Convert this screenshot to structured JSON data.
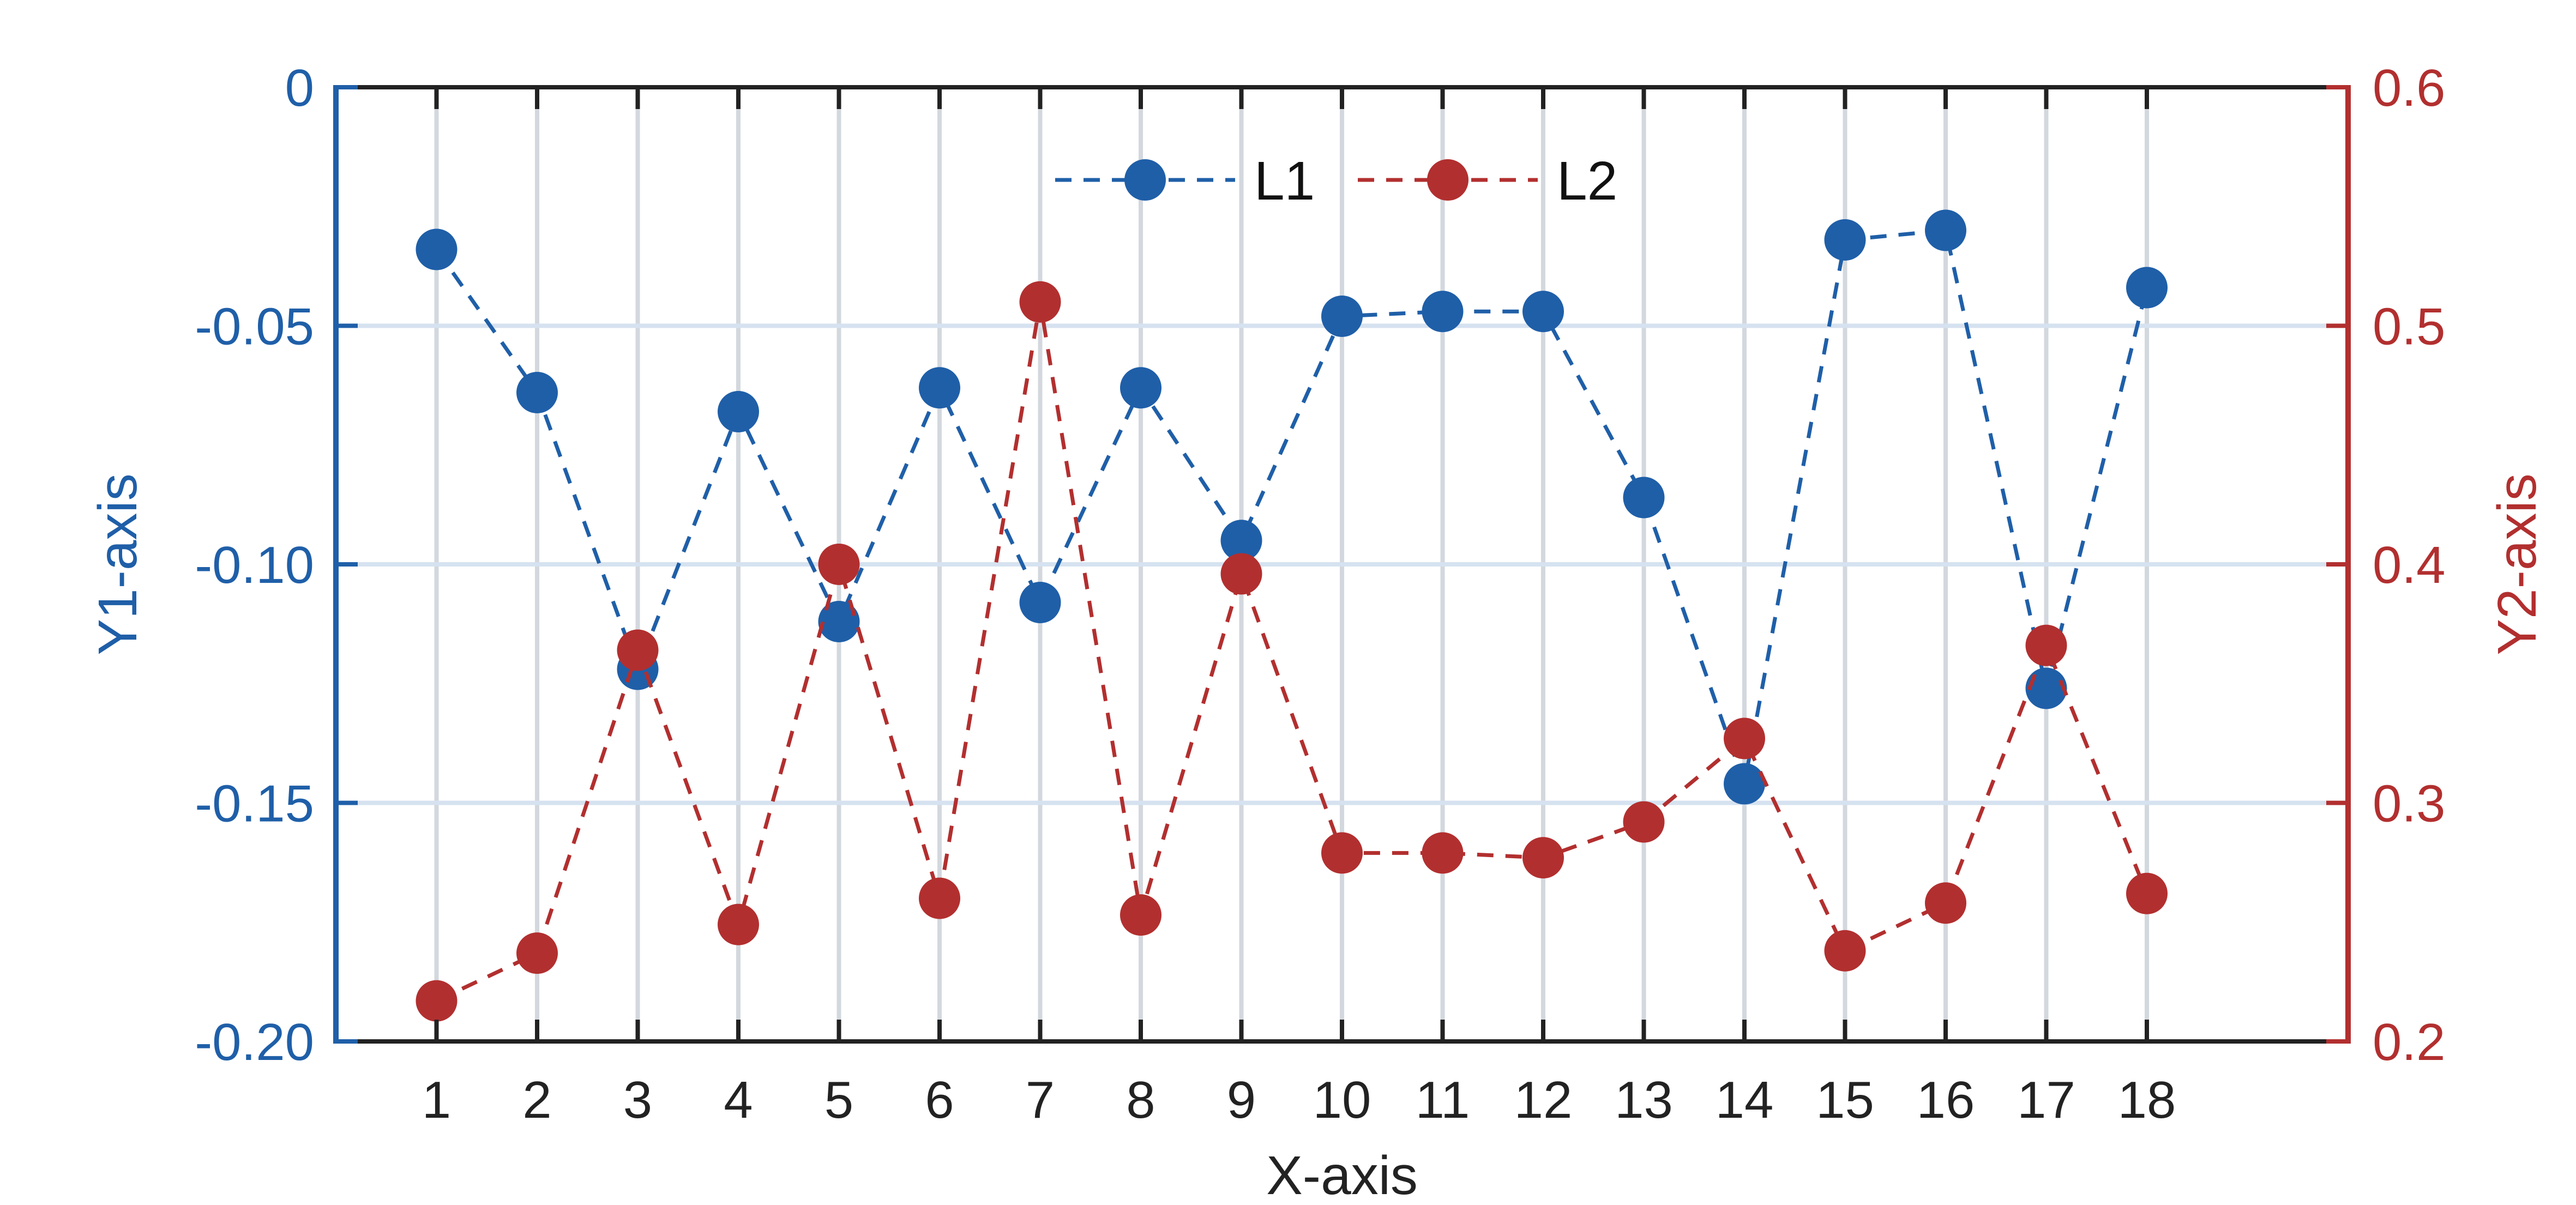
{
  "chart_data": {
    "type": "line",
    "xlabel": "X-axis",
    "y1label": "Y1-axis",
    "y2label": "Y2-axis",
    "x": [
      1,
      2,
      3,
      4,
      5,
      6,
      7,
      8,
      9,
      10,
      11,
      12,
      13,
      14,
      15,
      16,
      17,
      18
    ],
    "xticks": [
      "1",
      "2",
      "3",
      "4",
      "5",
      "6",
      "7",
      "8",
      "9",
      "10",
      "11",
      "12",
      "13",
      "14",
      "15",
      "16",
      "17",
      "18"
    ],
    "xlim": [
      0.0,
      20.0
    ],
    "y1lim": [
      -0.2,
      0
    ],
    "y2lim": [
      0.2,
      0.6
    ],
    "y1ticks": [
      0,
      -0.05,
      -0.1,
      -0.15,
      -0.2
    ],
    "y1ticklabels": [
      "0",
      "-0.05",
      "-0.10",
      "-0.15",
      "-0.20"
    ],
    "y2ticks": [
      0.6,
      0.5,
      0.4,
      0.3,
      0.2
    ],
    "y2ticklabels": [
      "0.6",
      "0.5",
      "0.4",
      "0.3",
      "0.2"
    ],
    "grid": true,
    "legend_placement": "top-center",
    "series": [
      {
        "name": "L1",
        "axis": "y1",
        "color": "#1f5fa8",
        "values": [
          -0.034,
          -0.064,
          -0.122,
          -0.068,
          -0.112,
          -0.063,
          -0.108,
          -0.063,
          -0.095,
          -0.048,
          -0.047,
          -0.047,
          -0.086,
          -0.146,
          -0.032,
          -0.03,
          -0.126,
          -0.042
        ]
      },
      {
        "name": "L2",
        "axis": "y2",
        "color": "#b22f2f",
        "values": [
          0.217,
          0.237,
          0.364,
          0.249,
          0.4,
          0.26,
          0.51,
          0.253,
          0.396,
          0.279,
          0.279,
          0.277,
          0.292,
          0.327,
          0.238,
          0.258,
          0.366,
          0.262
        ]
      }
    ]
  }
}
